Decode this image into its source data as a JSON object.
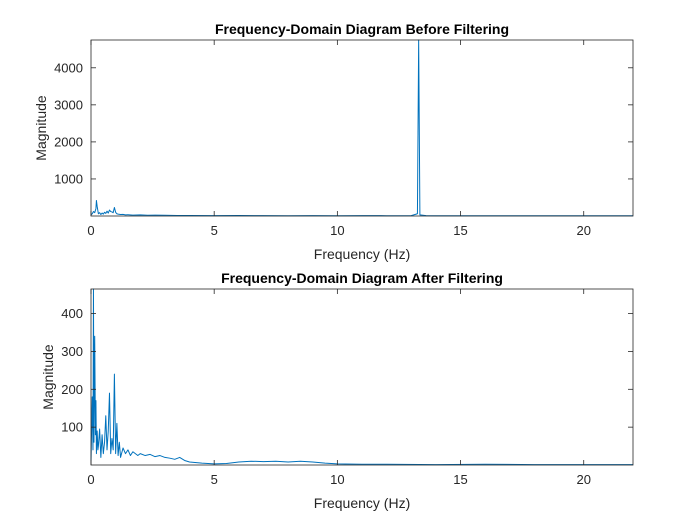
{
  "chart_data": [
    {
      "type": "line",
      "title": "Frequency-Domain Diagram Before Filtering",
      "xlabel": "Frequency (Hz)",
      "ylabel": "Magnitude",
      "xlim": [
        0,
        22
      ],
      "ylim": [
        0,
        4750
      ],
      "xticks": [
        0,
        5,
        10,
        15,
        20
      ],
      "yticks": [
        1000,
        2000,
        3000,
        4000
      ],
      "grid": false,
      "series": [
        {
          "color": "#0072BD",
          "x": [
            0,
            0.05,
            0.1,
            0.15,
            0.2,
            0.22,
            0.25,
            0.3,
            0.35,
            0.4,
            0.45,
            0.5,
            0.55,
            0.6,
            0.65,
            0.7,
            0.75,
            0.8,
            0.85,
            0.9,
            0.95,
            1.0,
            1.05,
            1.1,
            1.2,
            1.3,
            1.4,
            1.5,
            1.7,
            2.0,
            2.3,
            2.6,
            3.0,
            3.5,
            4.0,
            5.0,
            6.0,
            7.0,
            8.0,
            9.0,
            10.0,
            11.0,
            12.0,
            13.0,
            13.25,
            13.3,
            13.35,
            13.6,
            14.0,
            15.0,
            16.0,
            17.0,
            18.0,
            19.0,
            20.0,
            21.0,
            22.0
          ],
          "y": [
            30,
            60,
            120,
            90,
            200,
            420,
            260,
            60,
            90,
            40,
            80,
            50,
            100,
            70,
            130,
            80,
            160,
            120,
            110,
            90,
            230,
            100,
            60,
            50,
            40,
            45,
            30,
            35,
            25,
            30,
            20,
            25,
            20,
            15,
            12,
            10,
            12,
            10,
            8,
            10,
            8,
            10,
            8,
            10,
            60,
            4750,
            30,
            10,
            8,
            7,
            8,
            6,
            7,
            6,
            5,
            6,
            5
          ]
        }
      ]
    },
    {
      "type": "line",
      "title": "Frequency-Domain Diagram After Filtering",
      "xlabel": "Frequency (Hz)",
      "ylabel": "Magnitude",
      "xlim": [
        0,
        22
      ],
      "ylim": [
        0,
        465
      ],
      "xticks": [
        0,
        5,
        10,
        15,
        20
      ],
      "yticks": [
        100,
        200,
        300,
        400
      ],
      "grid": false,
      "series": [
        {
          "color": "#0072BD",
          "x": [
            0,
            0.05,
            0.08,
            0.1,
            0.12,
            0.15,
            0.18,
            0.2,
            0.22,
            0.25,
            0.28,
            0.3,
            0.35,
            0.4,
            0.45,
            0.5,
            0.55,
            0.6,
            0.65,
            0.7,
            0.75,
            0.8,
            0.85,
            0.9,
            0.95,
            1.0,
            1.05,
            1.1,
            1.15,
            1.2,
            1.3,
            1.4,
            1.5,
            1.6,
            1.7,
            1.8,
            1.9,
            2.0,
            2.2,
            2.4,
            2.6,
            2.8,
            3.0,
            3.2,
            3.4,
            3.6,
            3.8,
            4.0,
            4.5,
            5.0,
            5.5,
            6.0,
            6.5,
            7.0,
            7.5,
            8.0,
            8.5,
            9.0,
            9.5,
            10.0,
            11.0,
            12.0,
            14.0,
            16.0,
            18.0,
            20.0,
            22.0
          ],
          "y": [
            10,
            180,
            40,
            465,
            60,
            340,
            80,
            170,
            30,
            90,
            40,
            50,
            95,
            20,
            80,
            30,
            60,
            130,
            40,
            90,
            190,
            30,
            70,
            40,
            240,
            30,
            110,
            25,
            60,
            20,
            45,
            30,
            40,
            25,
            35,
            30,
            25,
            30,
            25,
            28,
            22,
            25,
            20,
            18,
            15,
            20,
            12,
            8,
            5,
            3,
            4,
            8,
            10,
            9,
            10,
            8,
            10,
            8,
            5,
            3,
            2,
            2,
            1,
            2,
            1,
            1,
            1
          ]
        }
      ]
    }
  ]
}
